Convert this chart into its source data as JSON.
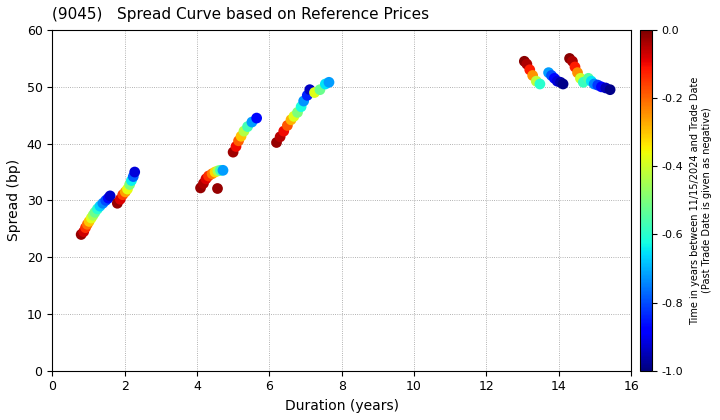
{
  "title": "(9045)   Spread Curve based on Reference Prices",
  "xlabel": "Duration (years)",
  "ylabel": "Spread (bp)",
  "xlim": [
    0,
    16
  ],
  "ylim": [
    0,
    60
  ],
  "xticks": [
    0,
    2,
    4,
    6,
    8,
    10,
    12,
    14,
    16
  ],
  "yticks": [
    0,
    10,
    20,
    30,
    40,
    50,
    60
  ],
  "colorbar_label_line1": "Time in years between 11/15/2024 and Trade Date",
  "colorbar_label_line2": "(Past Trade Date is given as negative)",
  "clim": [
    -1.0,
    0.0
  ],
  "clusters": [
    {
      "durations": [
        0.8,
        0.87,
        0.92,
        0.97,
        1.02,
        1.08,
        1.13,
        1.18,
        1.25,
        1.32,
        1.4,
        1.48,
        1.55,
        1.6
      ],
      "spreads": [
        24.0,
        24.5,
        25.2,
        25.8,
        26.3,
        26.9,
        27.4,
        27.9,
        28.5,
        29.0,
        29.5,
        30.0,
        30.4,
        30.8
      ],
      "times": [
        -0.02,
        -0.07,
        -0.14,
        -0.21,
        -0.3,
        -0.38,
        -0.45,
        -0.52,
        -0.6,
        -0.67,
        -0.74,
        -0.8,
        -0.87,
        -0.93
      ]
    },
    {
      "durations": [
        1.8,
        1.88,
        1.95,
        2.02,
        2.08,
        2.14,
        2.19,
        2.24,
        2.28
      ],
      "spreads": [
        29.5,
        30.2,
        31.0,
        31.5,
        32.0,
        32.8,
        33.5,
        34.2,
        35.0
      ],
      "times": [
        -0.02,
        -0.08,
        -0.16,
        -0.26,
        -0.37,
        -0.5,
        -0.64,
        -0.78,
        -0.92
      ]
    },
    {
      "durations": [
        4.1,
        4.18,
        4.25,
        4.32,
        4.42,
        4.5,
        4.58,
        4.65,
        4.72
      ],
      "spreads": [
        32.2,
        33.0,
        33.8,
        34.3,
        34.7,
        35.0,
        35.2,
        35.3,
        35.3
      ],
      "times": [
        -0.02,
        -0.04,
        -0.08,
        -0.14,
        -0.22,
        -0.32,
        -0.44,
        -0.57,
        -0.72
      ]
    },
    {
      "durations": [
        4.55
      ],
      "spreads": [
        32.2
      ],
      "times": [
        -0.02
      ]
    },
    {
      "durations": [
        5.0,
        5.08,
        5.15,
        5.22,
        5.3,
        5.4,
        5.52,
        5.65
      ],
      "spreads": [
        38.5,
        39.5,
        40.5,
        41.3,
        42.2,
        43.0,
        43.8,
        44.5
      ],
      "times": [
        -0.03,
        -0.1,
        -0.19,
        -0.3,
        -0.43,
        -0.57,
        -0.72,
        -0.87
      ]
    },
    {
      "durations": [
        6.2,
        6.3,
        6.4,
        6.5,
        6.6,
        6.68,
        6.78,
        6.88,
        6.95,
        7.05,
        7.12
      ],
      "spreads": [
        40.2,
        41.2,
        42.2,
        43.2,
        44.2,
        44.8,
        45.5,
        46.5,
        47.5,
        48.5,
        49.5
      ],
      "times": [
        -0.02,
        -0.05,
        -0.1,
        -0.18,
        -0.28,
        -0.38,
        -0.5,
        -0.62,
        -0.73,
        -0.84,
        -0.94
      ]
    },
    {
      "durations": [
        7.25,
        7.4,
        7.55,
        7.65
      ],
      "spreads": [
        49.0,
        49.5,
        50.5,
        50.8
      ],
      "times": [
        -0.38,
        -0.52,
        -0.65,
        -0.72
      ]
    },
    {
      "durations": [
        13.05,
        13.12,
        13.2,
        13.28,
        13.38,
        13.48
      ],
      "spreads": [
        54.5,
        54.0,
        53.0,
        52.0,
        51.0,
        50.5
      ],
      "times": [
        -0.01,
        -0.04,
        -0.12,
        -0.25,
        -0.42,
        -0.6
      ]
    },
    {
      "durations": [
        13.72,
        13.8,
        13.88,
        13.96,
        14.05,
        14.12
      ],
      "spreads": [
        52.5,
        52.0,
        51.5,
        51.0,
        50.8,
        50.5
      ],
      "times": [
        -0.72,
        -0.8,
        -0.87,
        -0.92,
        -0.96,
        -0.99
      ]
    },
    {
      "durations": [
        14.3,
        14.38,
        14.45,
        14.52,
        14.6,
        14.68
      ],
      "spreads": [
        55.0,
        54.5,
        53.5,
        52.5,
        51.5,
        50.8
      ],
      "times": [
        -0.01,
        -0.04,
        -0.12,
        -0.24,
        -0.4,
        -0.58
      ]
    },
    {
      "durations": [
        14.82,
        14.9,
        14.98,
        15.08,
        15.18,
        15.3,
        15.42
      ],
      "spreads": [
        51.5,
        51.0,
        50.5,
        50.3,
        50.0,
        49.8,
        49.5
      ],
      "times": [
        -0.55,
        -0.65,
        -0.74,
        -0.82,
        -0.89,
        -0.95,
        -0.99
      ]
    }
  ]
}
